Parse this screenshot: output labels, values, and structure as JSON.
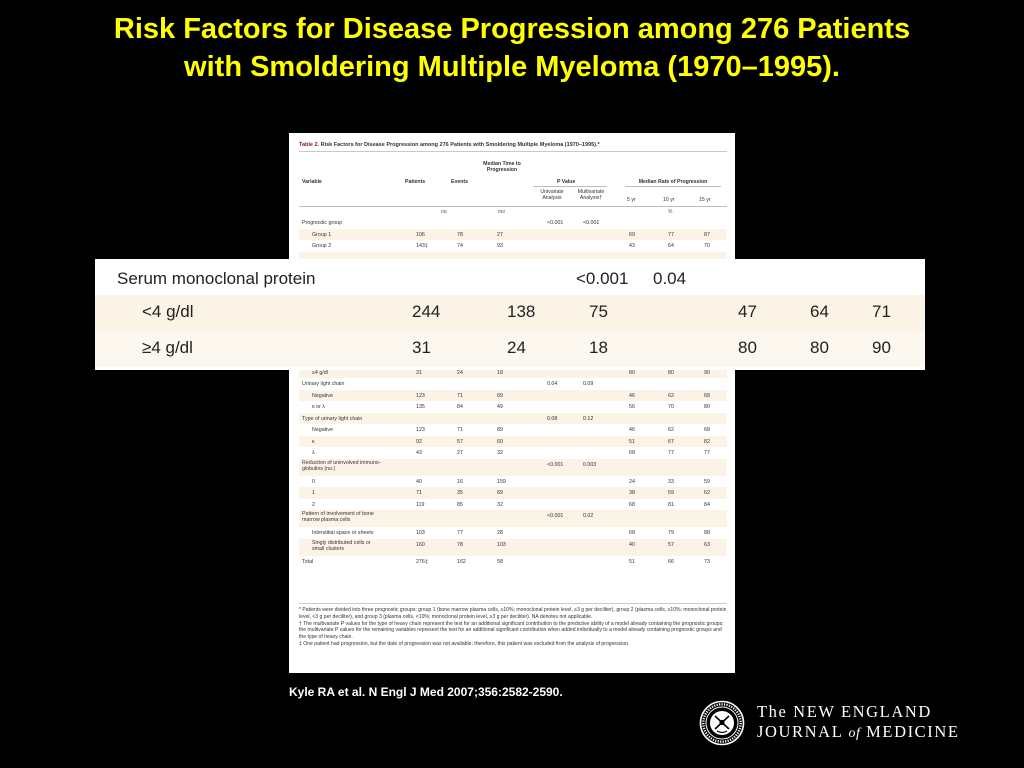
{
  "slide": {
    "title_line1": "Risk Factors for Disease Progression among 276 Patients",
    "title_line2": "with Smoldering Multiple Myeloma (1970–1995).",
    "citation": "Kyle RA et al. N Engl J Med 2007;356:2582-2590."
  },
  "colors": {
    "background": "#000000",
    "title": "#ffff00",
    "row_shade": "#fbf3e6",
    "caption_red": "#8b1a1a"
  },
  "table": {
    "caption_label": "Table 2.",
    "caption_text": "Risk Factors for Disease Progression among 276 Patients with Smoldering Multiple Myeloma (1970–1995).*",
    "headers": {
      "variable": "Variable",
      "patients": "Patients",
      "events": "Events",
      "median_time": "Median Time to Progression",
      "p_value": "P Value",
      "univariate": "Univariate Analysis",
      "multivariate": "Multivariate Analysis†",
      "median_rate": "Median Rate of Progression",
      "yr5": "5 yr",
      "yr10": "10 yr",
      "yr15": "15 yr"
    },
    "units": {
      "patients": "no.",
      "median_time": "mo",
      "rate": "%"
    },
    "rows": [
      {
        "label": "Prognostic group",
        "patients": "",
        "events": "",
        "median": "",
        "uni": "<0.001",
        "mul": "<0.001",
        "y5": "",
        "y10": "",
        "y15": "",
        "indent": false
      },
      {
        "label": "Group 1",
        "patients": "106",
        "events": "78",
        "median": "27",
        "uni": "",
        "mul": "",
        "y5": "69",
        "y10": "77",
        "y15": "87",
        "indent": true
      },
      {
        "label": "Group 2",
        "patients": "143‡",
        "events": "74",
        "median": "93",
        "uni": "",
        "mul": "",
        "y5": "43",
        "y10": "64",
        "y15": "70",
        "indent": true
      },
      {
        "label": "",
        "patients": "",
        "events": "",
        "median": "",
        "uni": "",
        "mul": "",
        "y5": "",
        "y10": "",
        "y15": "",
        "indent": true
      },
      {
        "label": "",
        "patients": "",
        "events": "",
        "median": "",
        "uni": "",
        "mul": "",
        "y5": "",
        "y10": "",
        "y15": "",
        "indent": true
      },
      {
        "label": "",
        "patients": "",
        "events": "",
        "median": "",
        "uni": "",
        "mul": "",
        "y5": "",
        "y10": "",
        "y15": "",
        "indent": true
      },
      {
        "label": "",
        "patients": "",
        "events": "",
        "median": "",
        "uni": "",
        "mul": "",
        "y5": "",
        "y10": "",
        "y15": "",
        "indent": true
      },
      {
        "label": "",
        "patients": "",
        "events": "",
        "median": "",
        "uni": "",
        "mul": "",
        "y5": "",
        "y10": "",
        "y15": "",
        "indent": true
      },
      {
        "label": "",
        "patients": "",
        "events": "",
        "median": "",
        "uni": "",
        "mul": "",
        "y5": "",
        "y10": "",
        "y15": "",
        "indent": true
      },
      {
        "label": "",
        "patients": "",
        "events": "",
        "median": "",
        "uni": "",
        "mul": "",
        "y5": "",
        "y10": "",
        "y15": "",
        "indent": true
      },
      {
        "label": "",
        "patients": "",
        "events": "",
        "median": "",
        "uni": "",
        "mul": "",
        "y5": "",
        "y10": "",
        "y15": "",
        "indent": true
      },
      {
        "label": "",
        "patients": "",
        "events": "",
        "median": "",
        "uni": "",
        "mul": "",
        "y5": "",
        "y10": "",
        "y15": "",
        "indent": true
      },
      {
        "label": "<4 g/dl",
        "patients": "244",
        "events": "138",
        "median": "75",
        "uni": "",
        "mul": "",
        "y5": "47",
        "y10": "64",
        "y15": "71",
        "indent": true
      },
      {
        "label": "≥4 g/dl",
        "patients": "31",
        "events": "24",
        "median": "18",
        "uni": "",
        "mul": "",
        "y5": "80",
        "y10": "80",
        "y15": "90",
        "indent": true
      },
      {
        "label": "Urinary light chain",
        "patients": "",
        "events": "",
        "median": "",
        "uni": "0.04",
        "mul": "0.09",
        "y5": "",
        "y10": "",
        "y15": "",
        "indent": false
      },
      {
        "label": "Negative",
        "patients": "123",
        "events": "71",
        "median": "89",
        "uni": "",
        "mul": "",
        "y5": "46",
        "y10": "62",
        "y15": "68",
        "indent": true
      },
      {
        "label": "κ or λ",
        "patients": "135",
        "events": "84",
        "median": "49",
        "uni": "",
        "mul": "",
        "y5": "56",
        "y10": "70",
        "y15": "80",
        "indent": true
      },
      {
        "label": "Type of urinary light chain",
        "patients": "",
        "events": "",
        "median": "",
        "uni": "0.08",
        "mul": "0.12",
        "y5": "",
        "y10": "",
        "y15": "",
        "indent": false
      },
      {
        "label": "Negative",
        "patients": "123",
        "events": "71",
        "median": "89",
        "uni": "",
        "mul": "",
        "y5": "46",
        "y10": "62",
        "y15": "68",
        "indent": true
      },
      {
        "label": "κ",
        "patients": "92",
        "events": "57",
        "median": "60",
        "uni": "",
        "mul": "",
        "y5": "51",
        "y10": "67",
        "y15": "82",
        "indent": true
      },
      {
        "label": "λ",
        "patients": "43",
        "events": "27",
        "median": "32",
        "uni": "",
        "mul": "",
        "y5": "68",
        "y10": "77",
        "y15": "77",
        "indent": true
      },
      {
        "label": "Reduction of uninvolved immuno-\nglobulins (no.)",
        "patients": "",
        "events": "",
        "median": "",
        "uni": "<0.001",
        "mul": "0.003",
        "y5": "",
        "y10": "",
        "y15": "",
        "indent": false,
        "tall": true
      },
      {
        "label": "0",
        "patients": "40",
        "events": "16",
        "median": "159",
        "uni": "",
        "mul": "",
        "y5": "24",
        "y10": "33",
        "y15": "59",
        "indent": true
      },
      {
        "label": "1",
        "patients": "71",
        "events": "35",
        "median": "89",
        "uni": "",
        "mul": "",
        "y5": "38",
        "y10": "59",
        "y15": "62",
        "indent": true
      },
      {
        "label": "2",
        "patients": "119",
        "events": "85",
        "median": "32",
        "uni": "",
        "mul": "",
        "y5": "68",
        "y10": "81",
        "y15": "84",
        "indent": true
      },
      {
        "label": "Pattern of involvement of bone\nmarrow plasma cells",
        "patients": "",
        "events": "",
        "median": "",
        "uni": "<0.001",
        "mul": "0.02",
        "y5": "",
        "y10": "",
        "y15": "",
        "indent": false,
        "tall": true
      },
      {
        "label": "Interstitial space or sheets",
        "patients": "103",
        "events": "77",
        "median": "28",
        "uni": "",
        "mul": "",
        "y5": "68",
        "y10": "79",
        "y15": "88",
        "indent": true
      },
      {
        "label": "Singly distributed cells or\nsmall clusters",
        "patients": "160",
        "events": "78",
        "median": "103",
        "uni": "",
        "mul": "",
        "y5": "40",
        "y10": "57",
        "y15": "63",
        "indent": true,
        "tall": true
      },
      {
        "label": "Total",
        "patients": "276‡",
        "events": "162",
        "median": "58",
        "uni": "",
        "mul": "",
        "y5": "51",
        "y10": "66",
        "y15": "73",
        "indent": false
      }
    ],
    "footnotes": [
      "* Patients were divided into three prognostic groups: group 1 (bone marrow plasma cells, ≥10%; monoclonal protein level, ≥3 g per deciliter), group 2 (plasma cells, ≥10%; monoclonal protein level, <3 g per deciliter), and group 3 (plasma cells, <10%; monoclonal protein level, ≥3 g per deciliter). NA denotes not applicable.",
      "† The multivariate P values for the type of heavy chain represent the test for an additional significant contribution to the predictive ability of a model already containing the prognostic groups; the multivariate P values for the remaining variables represent the test for an additional significant contribution when added individually to a model already containing prognostic groups and the type of heavy chain.",
      "‡ One patient had progression, but the date of progression was not available; therefore, this patient was excluded from the analysis of progression."
    ]
  },
  "zoom": {
    "rows": [
      {
        "label": "Serum monoclonal protein",
        "patients": "",
        "events": "",
        "median": "",
        "uni": "<0.001",
        "mul": "0.04",
        "y5": "",
        "y10": "",
        "y15": ""
      },
      {
        "label": "<4 g/dl",
        "patients": "244",
        "events": "138",
        "median": "75",
        "uni": "",
        "mul": "",
        "y5": "47",
        "y10": "64",
        "y15": "71"
      },
      {
        "label": "≥4 g/dl",
        "patients": "31",
        "events": "24",
        "median": "18",
        "uni": "",
        "mul": "",
        "y5": "80",
        "y10": "80",
        "y15": "90"
      }
    ]
  },
  "logo": {
    "line1": "The NEW ENGLAND",
    "line2_a": "JOURNAL",
    "line2_of": "of",
    "line2_b": "MEDICINE",
    "seal_icon": "nejm-seal-icon"
  }
}
